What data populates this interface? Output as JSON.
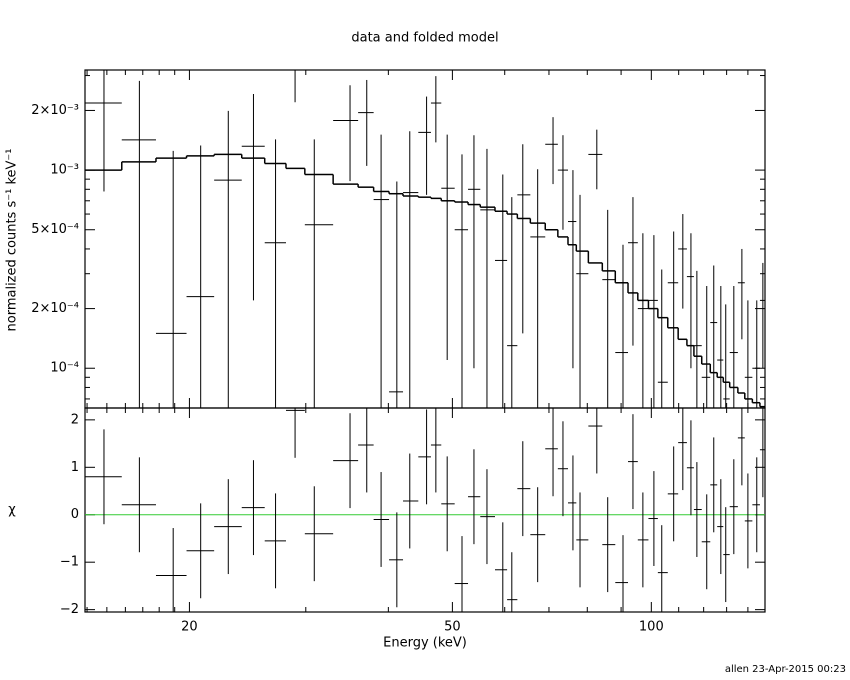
{
  "chart_data": [
    {
      "type": "errorbar",
      "title": "data and folded model",
      "ylabel": "normalized counts s⁻¹ keV⁻¹",
      "xscale": "log",
      "yscale": "log",
      "xlim": [
        13.9,
        148.6
      ],
      "ylim": [
        6.3e-05,
        0.0032
      ],
      "yticks": [
        {
          "value": 0.0001,
          "label": "10⁻⁴"
        },
        {
          "value": 0.0002,
          "label": "2×10⁻⁴"
        },
        {
          "value": 0.0005,
          "label": "5×10⁻⁴"
        },
        {
          "value": 0.001,
          "label": "10⁻³"
        },
        {
          "value": 0.002,
          "label": "2×10⁻³"
        }
      ],
      "yminorticks": [
        7e-05,
        8e-05,
        9e-05,
        0.0003,
        0.0004,
        0.0006,
        0.0007,
        0.0008,
        0.0009,
        0.003
      ],
      "color": "#000000",
      "x": [
        14.85,
        16.8,
        18.9,
        20.8,
        22.9,
        25.0,
        27.0,
        28.9,
        30.9,
        35.0,
        37.1,
        39.0,
        41.2,
        43.1,
        45.7,
        47.2,
        49.1,
        51.7,
        53.9,
        56.4,
        59.6,
        61.5,
        63.9,
        67.3,
        71.0,
        73.5,
        76.1,
        78.0,
        82.7,
        85.9,
        90.6,
        93.8,
        97.1,
        100.9,
        103.7,
        108.1,
        111.6,
        114.8,
        117.2,
        121.3,
        124.3,
        127.4,
        129.6,
        133.3,
        137.1,
        140.0,
        144.4,
        147.5
      ],
      "bins": [
        13.9,
        15.8,
        17.8,
        19.8,
        21.8,
        24.0,
        26.0,
        28.0,
        29.9,
        33.0,
        36.0,
        38.0,
        40.1,
        42.1,
        44.4,
        46.4,
        48.1,
        50.4,
        52.8,
        55.1,
        58.0,
        60.5,
        62.7,
        65.6,
        69.1,
        72.2,
        74.8,
        77.0,
        80.3,
        84.3,
        88.2,
        92.2,
        95.4,
        99.0,
        102.3,
        105.9,
        109.8,
        113.2,
        116.0,
        119.2,
        122.8,
        125.8,
        128.5,
        131.4,
        135.2,
        138.5,
        142.2,
        146.0,
        148.6
      ],
      "values": [
        0.00218,
        0.00142,
        0.00015,
        0.00023,
        0.00089,
        0.00132,
        0.00043,
        0.0032,
        0.00053,
        0.00178,
        0.00195,
        0.00071,
        7.6e-05,
        0.00077,
        0.00155,
        0.00218,
        0.00081,
        0.0005,
        0.0008,
        0.00063,
        0.00035,
        0.00013,
        0.00075,
        0.00046,
        0.00135,
        0.001,
        0.00055,
        0.0003,
        0.0012,
        0.00028,
        0.00012,
        0.00043,
        0.0002,
        0.00022,
        8.5e-05,
        0.00027,
        0.0004,
        0.00029,
        0.00013,
        9e-05,
        0.00017,
        0.00011,
        7e-05,
        0.00012,
        0.00027,
        9e-05,
        0.0001,
        0.00022
      ],
      "yerr": [
        0.0014,
        0.0014,
        0.0011,
        0.0011,
        0.0011,
        0.0011,
        0.001,
        0.001,
        0.0009,
        0.0009,
        0.0009,
        0.0008,
        0.0008,
        0.0008,
        0.0008,
        0.0008,
        0.0007,
        0.0007,
        0.0007,
        0.00065,
        0.0006,
        0.0006,
        0.0006,
        0.00055,
        0.0005,
        0.0005,
        0.00045,
        0.00045,
        0.0004,
        0.00035,
        0.0003,
        0.0003,
        0.00028,
        0.00025,
        0.00023,
        0.00022,
        0.0002,
        0.00019,
        0.00018,
        0.00017,
        0.00016,
        0.00015,
        0.00014,
        0.00014,
        0.00013,
        0.00013,
        0.00012,
        0.00012
      ],
      "model": {
        "color": "#000000",
        "values": [
          0.001,
          0.0011,
          0.00115,
          0.00118,
          0.0012,
          0.00115,
          0.00108,
          0.00102,
          0.00095,
          0.00085,
          0.00082,
          0.00078,
          0.00076,
          0.00074,
          0.00073,
          0.00072,
          0.0007,
          0.00069,
          0.00067,
          0.00065,
          0.00062,
          0.0006,
          0.00057,
          0.00054,
          0.0005,
          0.00046,
          0.00042,
          0.00039,
          0.00034,
          0.00031,
          0.00027,
          0.00024,
          0.00022,
          0.0002,
          0.00018,
          0.00016,
          0.00014,
          0.00013,
          0.000115,
          0.000105,
          9.5e-05,
          9e-05,
          8.5e-05,
          8e-05,
          7.5e-05,
          7e-05,
          6.7e-05,
          6.4e-05
        ]
      }
    },
    {
      "type": "errorbar",
      "ylabel": "χ",
      "xlabel": "Energy (keV)",
      "xscale": "log",
      "yscale": "linear",
      "xlim": [
        13.9,
        148.6
      ],
      "ylim": [
        -2.05,
        2.25
      ],
      "xticks": [
        20,
        50,
        100
      ],
      "xminorticks": [
        14,
        15,
        16,
        17,
        18,
        19,
        30,
        40,
        60,
        70,
        80,
        90,
        110,
        120,
        130,
        140
      ],
      "yticks": [
        {
          "value": -2,
          "label": "−2"
        },
        {
          "value": -1,
          "label": "−1"
        },
        0,
        1,
        2
      ],
      "color": "#000000",
      "values": [
        0.8,
        0.21,
        -1.28,
        -0.76,
        -0.25,
        0.15,
        -0.55,
        2.2,
        -0.4,
        1.14,
        1.47,
        -0.1,
        -0.95,
        0.29,
        1.22,
        1.47,
        0.23,
        -1.45,
        0.38,
        -0.04,
        -1.16,
        -1.79,
        0.55,
        -0.42,
        1.39,
        0.97,
        0.25,
        -0.53,
        1.87,
        -0.63,
        -1.43,
        1.12,
        -0.53,
        -0.08,
        -1.22,
        0.44,
        1.52,
        0.99,
        0.11,
        -0.57,
        0.63,
        -0.25,
        -0.84,
        0.17,
        1.62,
        -0.13,
        0.21,
        1.37
      ],
      "yerr": [
        1,
        1,
        1,
        1,
        1,
        1,
        1,
        1,
        1,
        1,
        1,
        1,
        1,
        1,
        1,
        1,
        1,
        1,
        1,
        1,
        1,
        1,
        1,
        1,
        1,
        1,
        1,
        1,
        1,
        1,
        1,
        1,
        1,
        1,
        1,
        1,
        1,
        1,
        1,
        1,
        1,
        1,
        1,
        1,
        1,
        1,
        1,
        1
      ],
      "reference_line": 0,
      "reference_color": "#33cc33"
    }
  ],
  "footer": "allen 23-Apr-2015 00:23"
}
